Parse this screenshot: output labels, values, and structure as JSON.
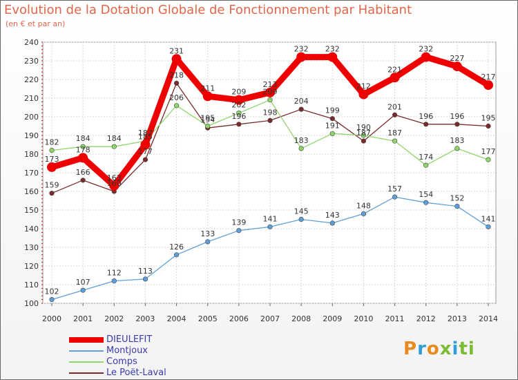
{
  "title": "Evolution de la Dotation Globale de Fonctionnement par Habitant",
  "subtitle": "(en € et par an)",
  "logo": {
    "text": "Proxiti",
    "parts": [
      "P",
      "r",
      "o",
      "x",
      "i",
      "ti"
    ]
  },
  "chart_data": {
    "type": "line",
    "x": [
      "2000",
      "2001",
      "2002",
      "2003",
      "2004",
      "2005",
      "2006",
      "2007",
      "2008",
      "2009",
      "2010",
      "2011",
      "2012",
      "2013",
      "2014"
    ],
    "ylim": [
      100,
      240
    ],
    "yticks": [
      "100",
      "110",
      "120",
      "130",
      "140",
      "150",
      "160",
      "170",
      "180",
      "190",
      "200",
      "210",
      "220",
      "230",
      "240"
    ],
    "grid": true,
    "legend_position": "bottom-left",
    "series": [
      {
        "name": "DIEULEFIT",
        "color": "#ee0000",
        "values": [
          173,
          178,
          163,
          185,
          231,
          211,
          209,
          213,
          232,
          232,
          212,
          221,
          232,
          227,
          217
        ],
        "labels": [
          "173",
          "178",
          "163",
          "185",
          "231",
          "211",
          "209",
          "213",
          "232",
          "232",
          "212",
          "221",
          "232",
          "227",
          "217"
        ]
      },
      {
        "name": "Montjoux",
        "color": "#5f9fd8",
        "values": [
          102,
          107,
          112,
          113,
          126,
          133,
          139,
          141,
          145,
          143,
          148,
          157,
          154,
          152,
          141
        ],
        "labels": [
          "102",
          "107",
          "112",
          "113",
          "126",
          "133",
          "139",
          "141",
          "145",
          "143",
          "148",
          "157",
          "154",
          "152",
          "141"
        ]
      },
      {
        "name": "Comps",
        "color": "#8ed66b",
        "values": [
          182,
          184,
          184,
          187,
          206,
          195,
          202,
          209,
          183,
          191,
          190,
          187,
          174,
          183,
          177
        ],
        "labels": [
          "182",
          "184",
          "184",
          "187",
          "206",
          "195",
          "202",
          "209",
          "183",
          "191",
          "190",
          "187",
          "174",
          "183",
          "177"
        ]
      },
      {
        "name": "Le Poët-Laval",
        "color": "#7a2a2a",
        "values": [
          159,
          166,
          160,
          177,
          218,
          194,
          196,
          198,
          204,
          199,
          187,
          201,
          196,
          196,
          195
        ],
        "labels": [
          "159",
          "166",
          "160",
          "177",
          "218",
          "194",
          "196",
          "198",
          "204",
          "199",
          "187",
          "201",
          "196",
          "196",
          "195"
        ]
      }
    ]
  }
}
